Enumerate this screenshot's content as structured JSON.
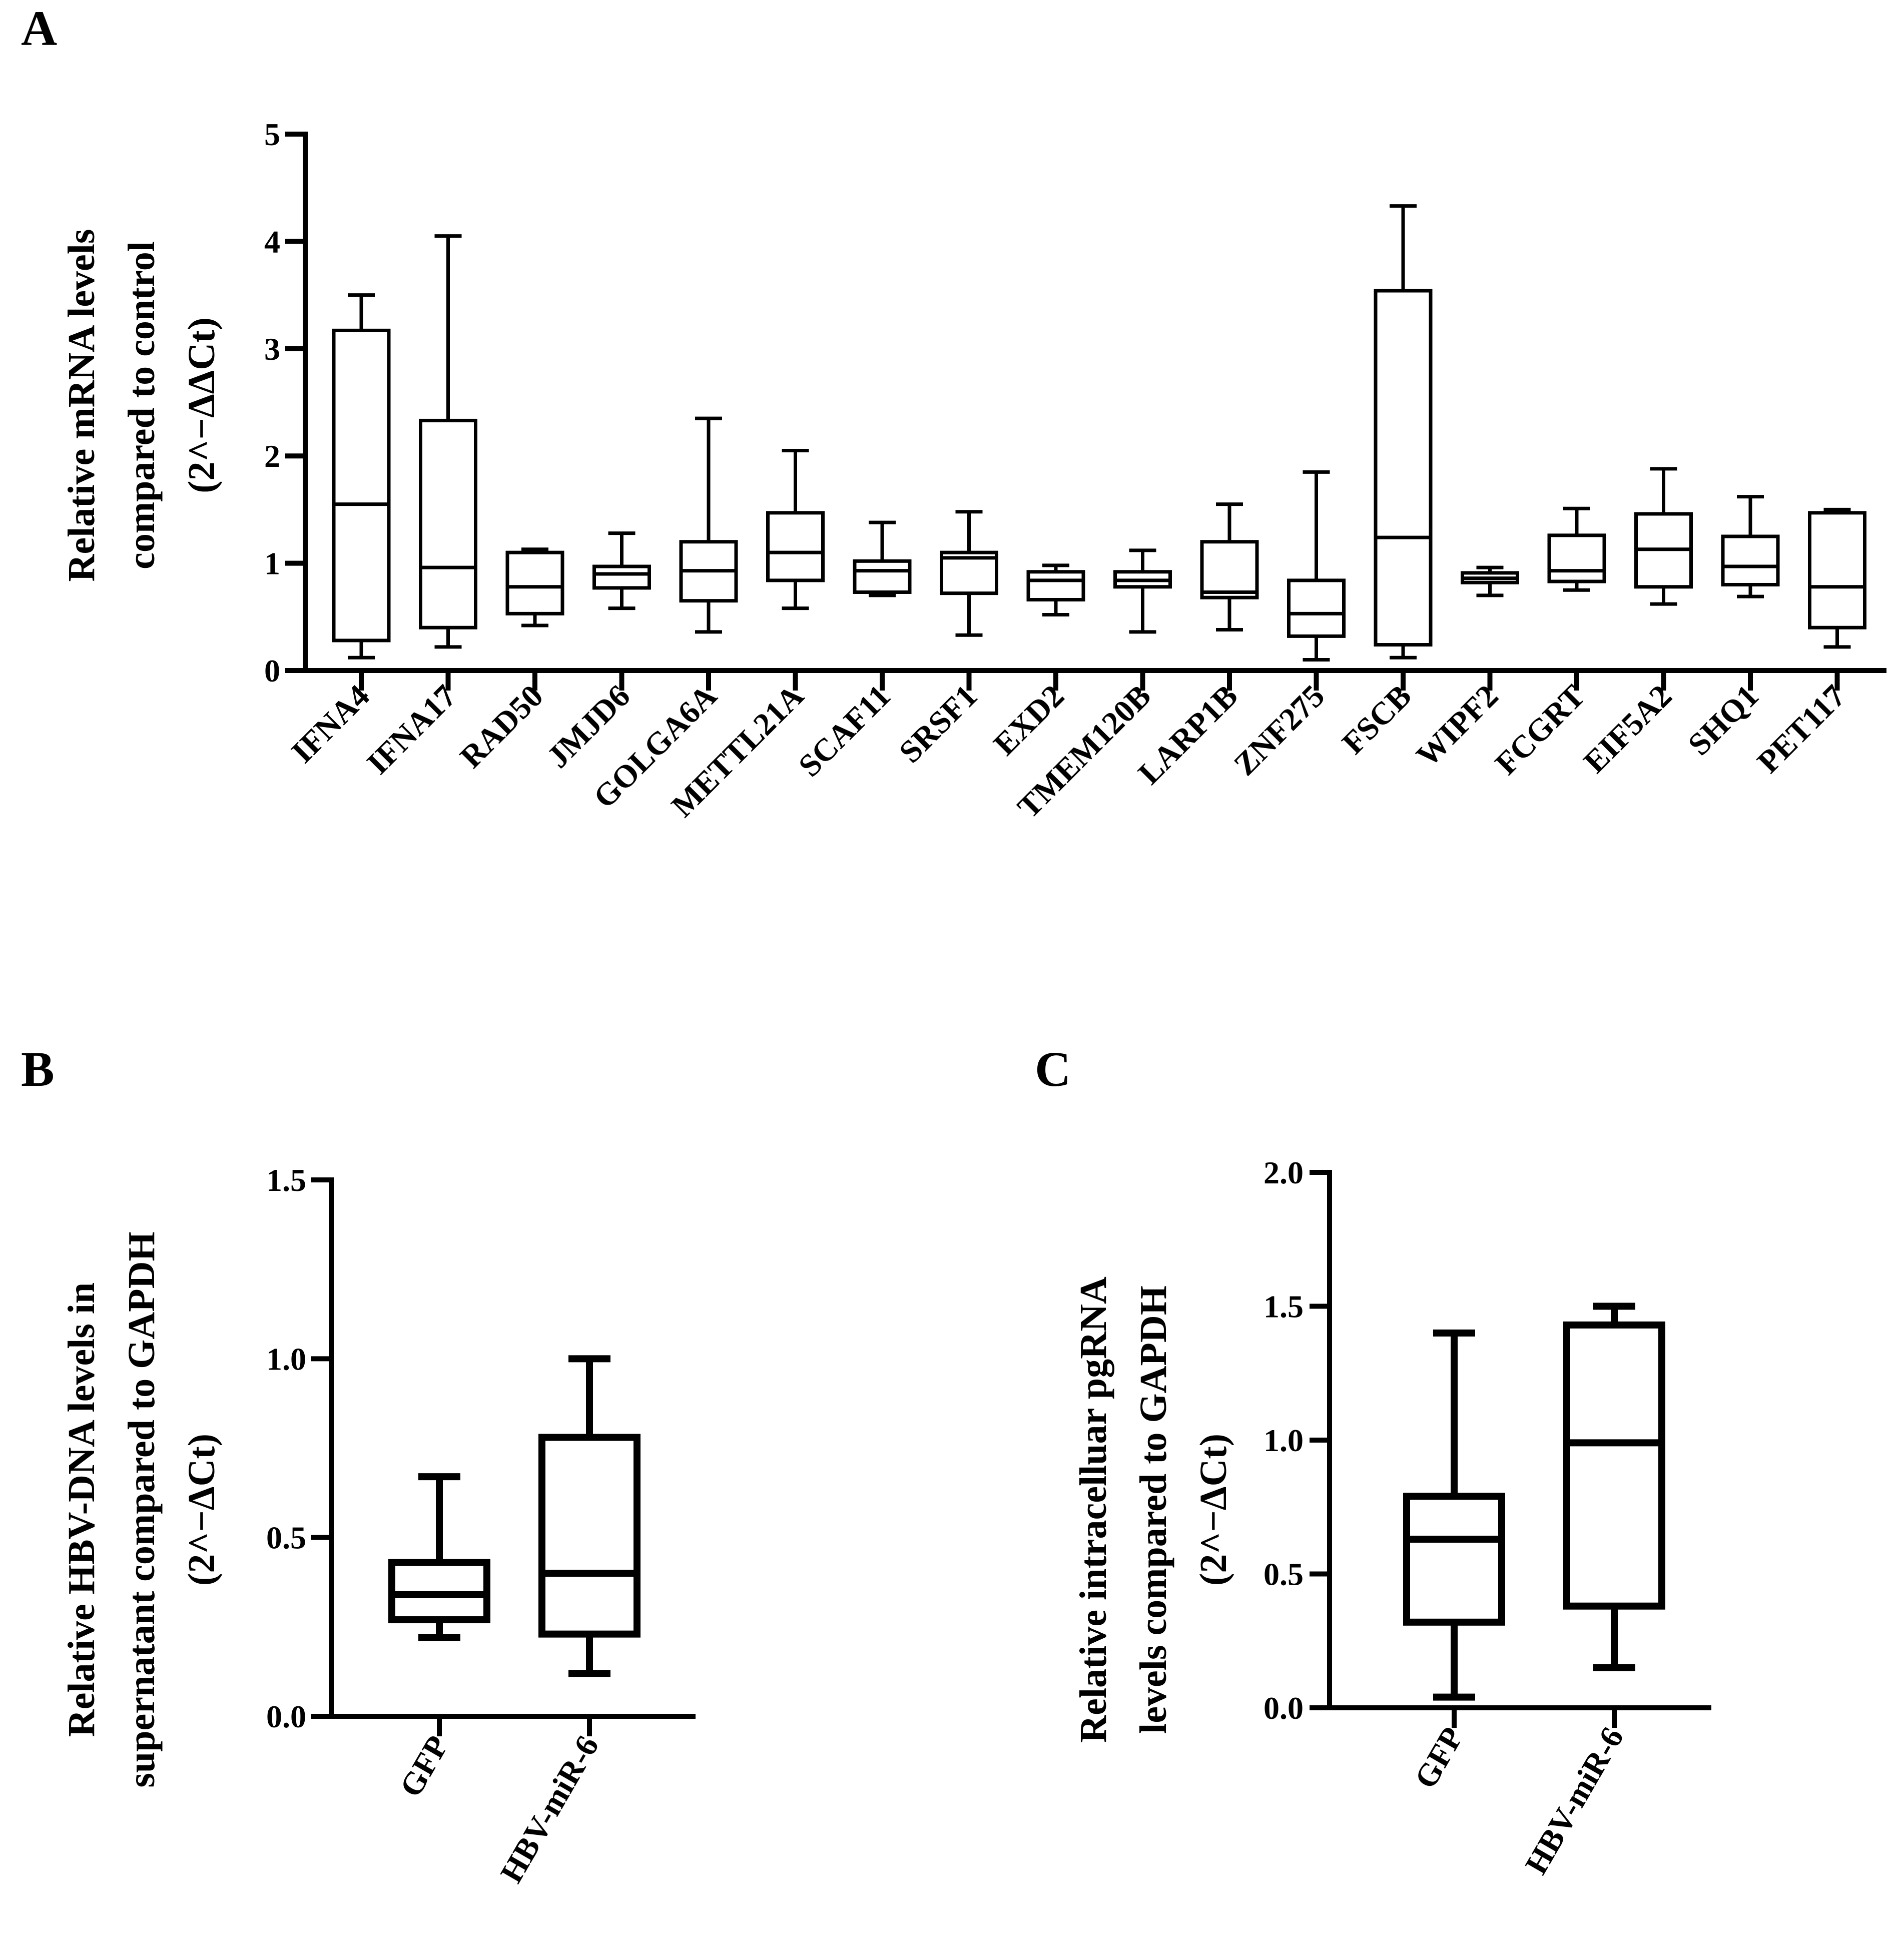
{
  "figure": {
    "panels": [
      {
        "id": "A",
        "letter": "A"
      },
      {
        "id": "B",
        "letter": "B"
      },
      {
        "id": "C",
        "letter": "C"
      }
    ]
  },
  "chart_data": [
    {
      "id": "A",
      "type": "box",
      "title": "",
      "ylabel": [
        "Relative mRNA levels",
        "compared to control",
        "(2^−ΔΔCt)"
      ],
      "xlabel": "",
      "ylim": [
        0,
        5
      ],
      "yticks": [
        0,
        1,
        2,
        3,
        4,
        5
      ],
      "ytick_labels": [
        "0",
        "1",
        "2",
        "3",
        "4",
        "5"
      ],
      "categories": [
        "IFNA4",
        "IFNA17",
        "RAD50",
        "JMJD6",
        "GOLGA6A",
        "METTL21A",
        "SCAF11",
        "SRSF1",
        "EXD2",
        "TMEM120B",
        "LARP1B",
        "ZNF275",
        "FSCB",
        "WIPF2",
        "FCGRT",
        "EIF5A2",
        "SHQ1",
        "PET117"
      ],
      "boxes": [
        {
          "min": 0.12,
          "q1": 0.28,
          "median": 1.55,
          "q3": 3.17,
          "max": 3.5
        },
        {
          "min": 0.22,
          "q1": 0.4,
          "median": 0.96,
          "q3": 2.33,
          "max": 4.05
        },
        {
          "min": 0.42,
          "q1": 0.53,
          "median": 0.78,
          "q3": 1.1,
          "max": 1.13
        },
        {
          "min": 0.58,
          "q1": 0.77,
          "median": 0.9,
          "q3": 0.97,
          "max": 1.28
        },
        {
          "min": 0.36,
          "q1": 0.65,
          "median": 0.93,
          "q3": 1.2,
          "max": 2.35
        },
        {
          "min": 0.58,
          "q1": 0.84,
          "median": 1.1,
          "q3": 1.47,
          "max": 2.05
        },
        {
          "min": 0.7,
          "q1": 0.73,
          "median": 0.93,
          "q3": 1.02,
          "max": 1.38
        },
        {
          "min": 0.33,
          "q1": 0.72,
          "median": 1.05,
          "q3": 1.1,
          "max": 1.48
        },
        {
          "min": 0.52,
          "q1": 0.66,
          "median": 0.84,
          "q3": 0.92,
          "max": 0.98
        },
        {
          "min": 0.36,
          "q1": 0.78,
          "median": 0.84,
          "q3": 0.92,
          "max": 1.12
        },
        {
          "min": 0.38,
          "q1": 0.68,
          "median": 0.73,
          "q3": 1.2,
          "max": 1.55
        },
        {
          "min": 0.1,
          "q1": 0.32,
          "median": 0.53,
          "q3": 0.84,
          "max": 1.85
        },
        {
          "min": 0.12,
          "q1": 0.24,
          "median": 1.24,
          "q3": 3.54,
          "max": 4.33
        },
        {
          "min": 0.7,
          "q1": 0.82,
          "median": 0.86,
          "q3": 0.91,
          "max": 0.96
        },
        {
          "min": 0.75,
          "q1": 0.83,
          "median": 0.93,
          "q3": 1.26,
          "max": 1.51
        },
        {
          "min": 0.62,
          "q1": 0.78,
          "median": 1.13,
          "q3": 1.46,
          "max": 1.88
        },
        {
          "min": 0.69,
          "q1": 0.8,
          "median": 0.97,
          "q3": 1.25,
          "max": 1.62
        },
        {
          "min": 0.22,
          "q1": 0.4,
          "median": 0.78,
          "q3": 1.47,
          "max": 1.5
        }
      ]
    },
    {
      "id": "B",
      "type": "box",
      "title": "",
      "ylabel": [
        "Relative HBV-DNA levels in",
        "supernatant compared to GAPDH",
        "(2^−ΔCt)"
      ],
      "xlabel": "",
      "ylim": [
        0,
        1.5
      ],
      "yticks": [
        0,
        0.5,
        1.0,
        1.5
      ],
      "ytick_labels": [
        "0.0",
        "0.5",
        "1.0",
        "1.5"
      ],
      "categories": [
        "GFP",
        "HBV-miR-6"
      ],
      "boxes": [
        {
          "min": 0.22,
          "q1": 0.27,
          "median": 0.34,
          "q3": 0.43,
          "max": 0.67
        },
        {
          "min": 0.12,
          "q1": 0.23,
          "median": 0.4,
          "q3": 0.78,
          "max": 1.0
        }
      ]
    },
    {
      "id": "C",
      "type": "box",
      "title": "",
      "ylabel": [
        "Relative intracelluar pgRNA",
        "levels compared to GAPDH",
        "(2^−ΔCt)"
      ],
      "xlabel": "",
      "ylim": [
        0,
        2.0
      ],
      "yticks": [
        0,
        0.5,
        1.0,
        1.5,
        2.0
      ],
      "ytick_labels": [
        "0.0",
        "0.5",
        "1.0",
        "1.5",
        "2.0"
      ],
      "categories": [
        "GFP",
        "HBV-miR-6"
      ],
      "boxes": [
        {
          "min": 0.04,
          "q1": 0.32,
          "median": 0.63,
          "q3": 0.79,
          "max": 1.4
        },
        {
          "min": 0.15,
          "q1": 0.38,
          "median": 0.99,
          "q3": 1.43,
          "max": 1.5
        }
      ]
    }
  ]
}
